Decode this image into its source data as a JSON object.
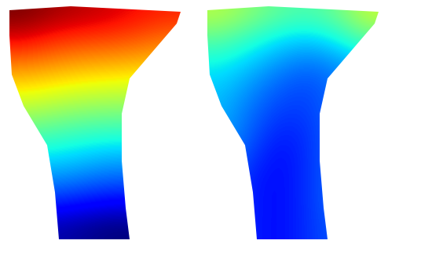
{
  "chart_data": [
    {
      "type": "heatmap",
      "tick_labels": false,
      "cells": [
        [
          1.0,
          0.97,
          0.95,
          0.93,
          0.9,
          0.88
        ],
        [
          0.92,
          0.88,
          0.86,
          0.85,
          0.83,
          0.8
        ],
        [
          0.8,
          0.78,
          0.76,
          0.75,
          0.74,
          0.72
        ],
        [
          0.7,
          0.68,
          0.66,
          0.65,
          0.64,
          0.62
        ],
        [
          0.6,
          0.58,
          0.56,
          0.55,
          0.55,
          0.55
        ],
        [
          0.5,
          0.48,
          0.46,
          0.45,
          0.45,
          0.45
        ],
        [
          0.4,
          0.4,
          0.38,
          0.36,
          0.36,
          0.36
        ],
        [
          0.32,
          0.32,
          0.3,
          0.28,
          0.28,
          0.28
        ],
        [
          0.22,
          0.22,
          0.2,
          0.18,
          0.18,
          0.18
        ],
        [
          0.12,
          0.12,
          0.1,
          0.08,
          0.08,
          0.1
        ]
      ]
    },
    {
      "type": "heatmap",
      "tick_labels": false,
      "cells": [
        [
          0.6,
          0.55,
          0.5,
          0.48,
          0.52,
          0.62
        ],
        [
          0.5,
          0.45,
          0.4,
          0.38,
          0.42,
          0.5
        ],
        [
          0.42,
          0.38,
          0.33,
          0.3,
          0.33,
          0.38
        ],
        [
          0.38,
          0.33,
          0.28,
          0.26,
          0.3,
          0.34
        ],
        [
          0.36,
          0.3,
          0.25,
          0.25,
          0.3,
          0.34
        ],
        [
          0.35,
          0.28,
          0.22,
          0.24,
          0.3,
          0.34
        ],
        [
          0.33,
          0.25,
          0.2,
          0.24,
          0.3,
          0.33
        ],
        [
          0.3,
          0.22,
          0.2,
          0.24,
          0.3,
          0.32
        ],
        [
          0.28,
          0.22,
          0.2,
          0.24,
          0.3,
          0.3
        ],
        [
          0.26,
          0.22,
          0.2,
          0.24,
          0.28,
          0.28
        ]
      ]
    }
  ]
}
